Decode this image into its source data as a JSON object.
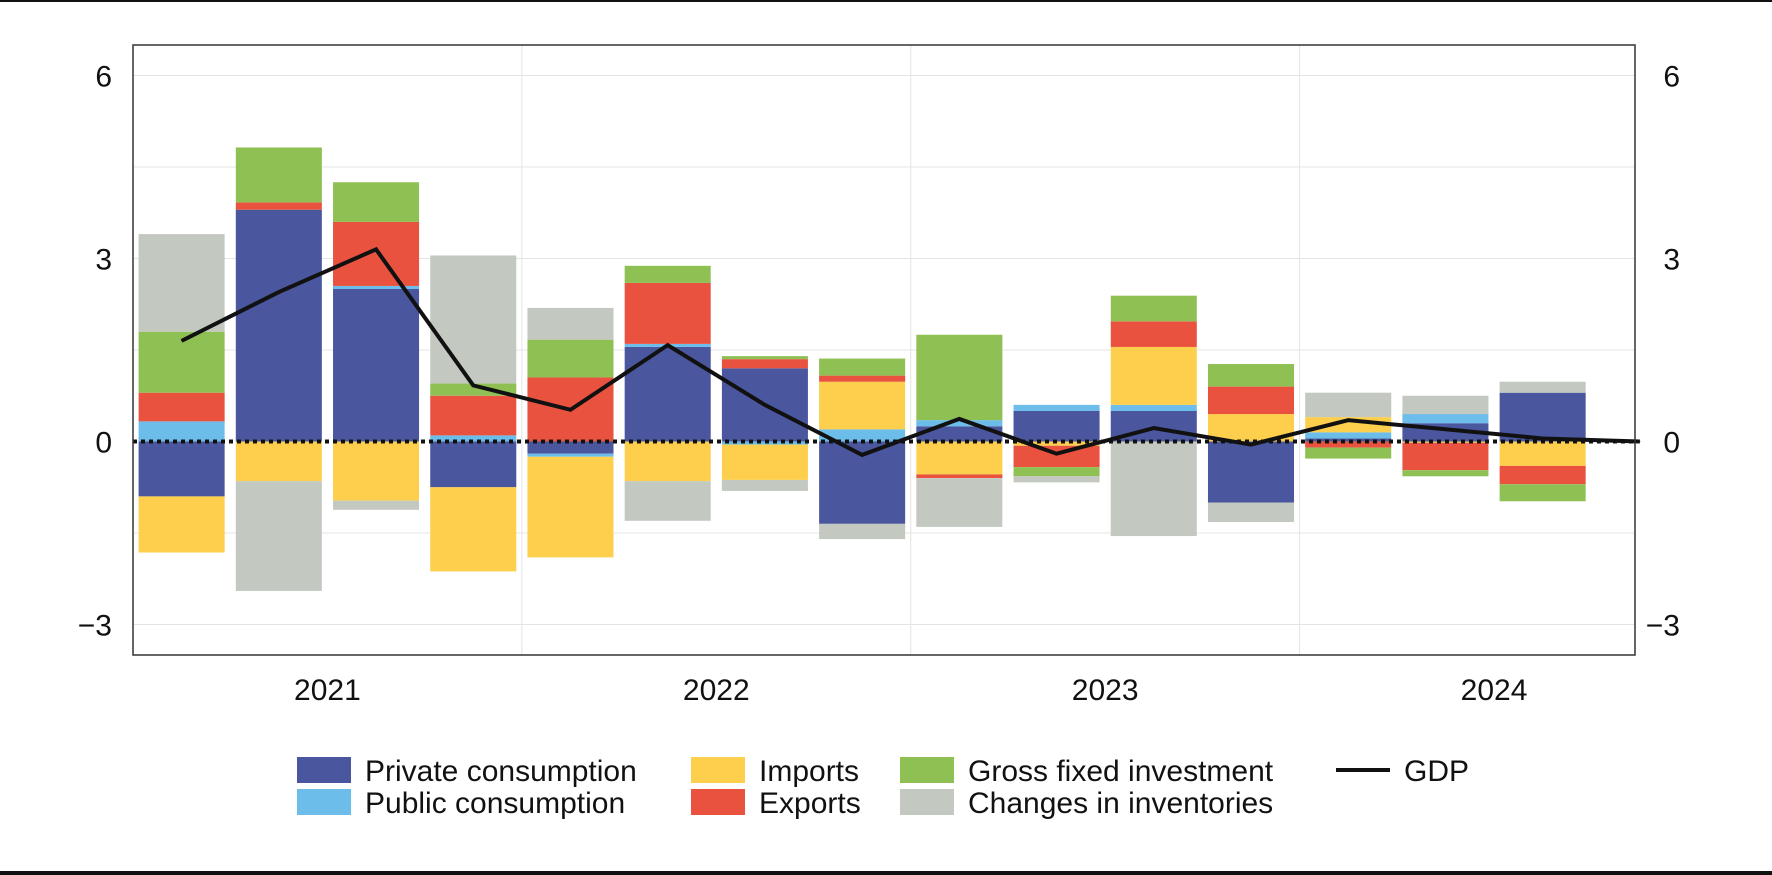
{
  "chart_data": {
    "type": "bar",
    "subtype": "stacked-bar-with-line",
    "title": "",
    "xlabel": "",
    "ylabel": "",
    "ylim": [
      -3.5,
      6.5
    ],
    "yticks": [
      -3,
      0,
      3,
      6
    ],
    "ytick_labels": [
      "−3",
      "0",
      "3",
      "6"
    ],
    "year_labels": [
      "2021",
      "2022",
      "2023",
      "2024"
    ],
    "categories": [
      "2021Q1",
      "2021Q2",
      "2021Q3",
      "2021Q4",
      "2022Q1",
      "2022Q2",
      "2022Q3",
      "2022Q4",
      "2023Q1",
      "2023Q2",
      "2023Q3",
      "2023Q4",
      "2024Q1",
      "2024Q2",
      "2024Q3",
      "2024Q4"
    ],
    "series": [
      {
        "name": "Private consumption",
        "color": "#4a569d",
        "values": [
          -0.9,
          3.8,
          2.5,
          -0.75,
          -0.2,
          1.55,
          1.2,
          -1.35,
          0.25,
          0.5,
          0.5,
          -1.0,
          0.05,
          0.3,
          0.8,
          0.0
        ]
      },
      {
        "name": "Public consumption",
        "color": "#6cbde9",
        "values": [
          0.33,
          0.0,
          0.05,
          0.1,
          -0.05,
          0.05,
          -0.05,
          0.2,
          0.1,
          0.1,
          0.1,
          0.0,
          0.1,
          0.15,
          0.0,
          0.0
        ]
      },
      {
        "name": "Imports",
        "color": "#fecf4d",
        "values": [
          -0.92,
          -0.65,
          -0.97,
          -1.38,
          -1.65,
          -0.65,
          -0.58,
          0.78,
          -0.54,
          -0.07,
          0.95,
          0.45,
          0.25,
          -0.02,
          -0.4,
          0.0
        ]
      },
      {
        "name": "Exports",
        "color": "#ea5240",
        "values": [
          0.47,
          0.12,
          1.05,
          0.65,
          1.05,
          1.0,
          0.15,
          0.1,
          -0.06,
          -0.35,
          0.42,
          0.45,
          -0.1,
          -0.45,
          -0.3,
          0.0
        ]
      },
      {
        "name": "Gross fixed investment",
        "color": "#8fc054",
        "values": [
          1.0,
          0.9,
          0.65,
          0.2,
          0.62,
          0.28,
          0.05,
          0.28,
          1.4,
          -0.15,
          0.42,
          0.37,
          -0.18,
          -0.1,
          -0.28,
          0.0
        ]
      },
      {
        "name": "Changes in inventories",
        "color": "#c3c9c1",
        "values": [
          1.6,
          -1.8,
          -0.15,
          2.1,
          0.52,
          -0.65,
          -0.18,
          -0.25,
          -0.8,
          -0.1,
          -1.55,
          -0.32,
          0.4,
          0.3,
          0.18,
          0.0
        ]
      }
    ],
    "line": {
      "name": "GDP",
      "color": "#111111",
      "values": [
        1.65,
        2.45,
        3.15,
        0.92,
        0.52,
        1.58,
        0.6,
        -0.22,
        0.37,
        -0.2,
        0.22,
        -0.05,
        0.35,
        0.2,
        0.05,
        0.0
      ]
    },
    "legend": [
      {
        "label": "Private consumption",
        "kind": "box",
        "color": "#4a569d"
      },
      {
        "label": "Public consumption",
        "kind": "box",
        "color": "#6cbde9"
      },
      {
        "label": "Imports",
        "kind": "box",
        "color": "#fecf4d"
      },
      {
        "label": "Exports",
        "kind": "box",
        "color": "#ea5240"
      },
      {
        "label": "Gross fixed investment",
        "kind": "box",
        "color": "#8fc054"
      },
      {
        "label": "Changes in inventories",
        "kind": "box",
        "color": "#c3c9c1"
      },
      {
        "label": "GDP",
        "kind": "line",
        "color": "#111111"
      }
    ],
    "legend_position": "bottom",
    "grid": true,
    "zero_line": "dotted"
  }
}
